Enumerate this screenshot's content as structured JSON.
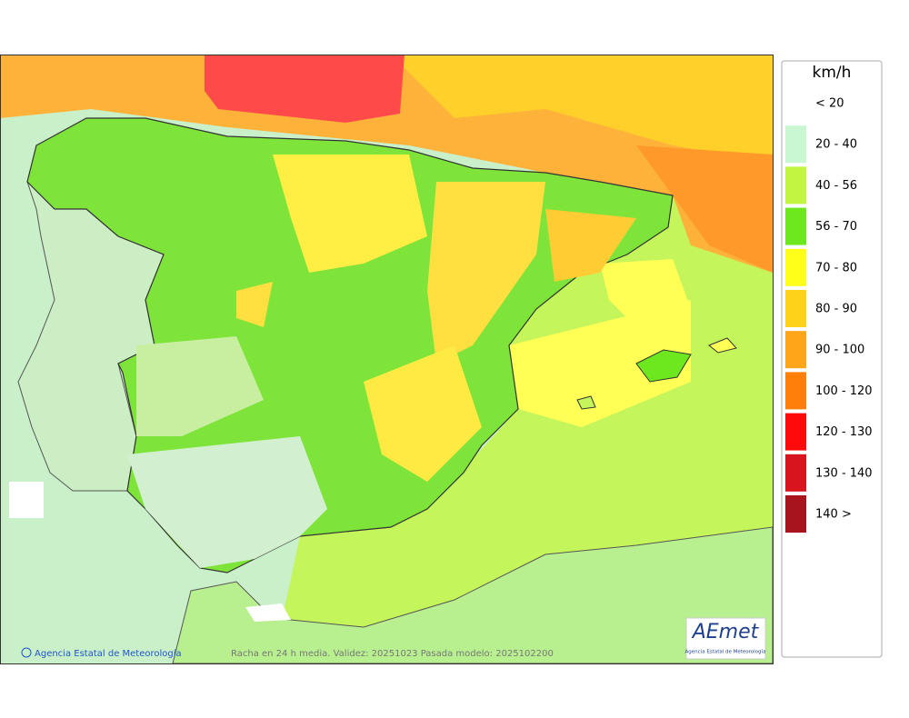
{
  "legend": {
    "title": "km/h",
    "items": [
      {
        "label": "< 20",
        "color": "#ffffff"
      },
      {
        "label": "20 - 40",
        "color": "#c8f7d2"
      },
      {
        "label": "40 - 56",
        "color": "#c2f542"
      },
      {
        "label": "56 - 70",
        "color": "#6ee81e"
      },
      {
        "label": "70 - 80",
        "color": "#ffff1a"
      },
      {
        "label": "80 - 90",
        "color": "#ffd21a"
      },
      {
        "label": "90 - 100",
        "color": "#ffa51a"
      },
      {
        "label": "100 - 120",
        "color": "#ff7f0a"
      },
      {
        "label": "120 - 130",
        "color": "#ff0a0a"
      },
      {
        "label": "130 - 140",
        "color": "#d8141e"
      },
      {
        "label": "140 >",
        "color": "#a8141e"
      }
    ]
  },
  "footer": {
    "credit": "Agencia Estatal de Meteorología",
    "caption": "Racha en 24 h media. Validez: 20251023 Pasada modelo: 2025102200"
  },
  "logo": {
    "name": "AEmet",
    "subtitle": "Agencia Estatal de Meteorología"
  }
}
